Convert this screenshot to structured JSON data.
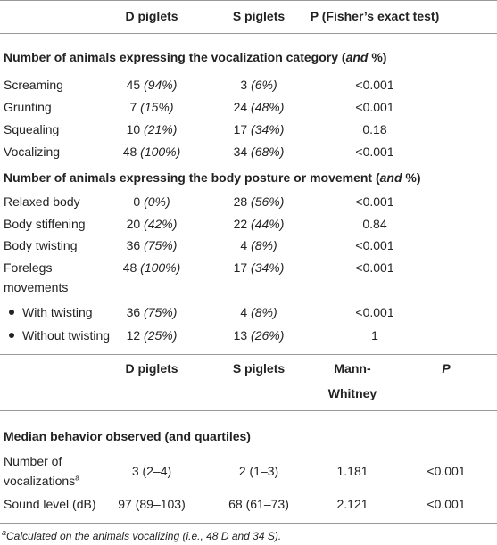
{
  "table1": {
    "header": [
      "D piglets",
      "S piglets",
      "P (Fisher’s exact test)"
    ],
    "sections": [
      {
        "title": {
          "before": "Number of animals expressing the vocalization category (",
          "italic": "and",
          "after": " %)"
        },
        "rows": [
          {
            "label": "Screaming",
            "d": [
              "45",
              "(94%)"
            ],
            "s": [
              "3",
              "(6%)"
            ],
            "p": "<0.001"
          },
          {
            "label": "Grunting",
            "d": [
              "7",
              "(15%)"
            ],
            "s": [
              "24",
              "(48%)"
            ],
            "p": "<0.001"
          },
          {
            "label": "Squealing",
            "d": [
              "10",
              "(21%)"
            ],
            "s": [
              "17",
              "(34%)"
            ],
            "p": "0.18"
          },
          {
            "label": "Vocalizing",
            "d": [
              "48",
              "(100%)"
            ],
            "s": [
              "34",
              "(68%)"
            ],
            "p": "<0.001"
          }
        ]
      },
      {
        "title": {
          "before": "Number of animals expressing the body posture or movement (",
          "italic": "and",
          "after": " %)"
        },
        "rows": [
          {
            "label": "Relaxed body",
            "d": [
              "0",
              "(0%)"
            ],
            "s": [
              "28",
              "(56%)"
            ],
            "p": "<0.001"
          },
          {
            "label": "Body stiffening",
            "d": [
              "20",
              "(42%)"
            ],
            "s": [
              "22",
              "(44%)"
            ],
            "p": "0.84"
          },
          {
            "label": "Body twisting",
            "d": [
              "36",
              "(75%)"
            ],
            "s": [
              "4",
              "(8%)"
            ],
            "p": "<0.001"
          },
          {
            "label": "Forelegs movements",
            "d": [
              "48",
              "(100%)"
            ],
            "s": [
              "17",
              "(34%)"
            ],
            "p": "<0.001",
            "subrows": [
              {
                "label": "With twisting",
                "d": [
                  "36",
                  "(75%)"
                ],
                "s": [
                  "4",
                  "(8%)"
                ],
                "p": "<0.001"
              },
              {
                "label": "Without twisting",
                "d": [
                  "12",
                  "(25%)"
                ],
                "s": [
                  "13",
                  "(26%)"
                ],
                "p": "1"
              }
            ]
          }
        ]
      }
    ]
  },
  "table2": {
    "header": [
      "D piglets",
      "S piglets",
      "Mann-Whitney",
      "P"
    ],
    "section": "Median behavior observed (and quartiles)",
    "rows": [
      {
        "label": "Number of vocalizations",
        "sup": "a",
        "d": "3 (2–4)",
        "s": "2 (1–3)",
        "u": "1.181",
        "p": "<0.001"
      },
      {
        "label": "Sound level (dB)",
        "d": "97 (89–103)",
        "s": "68 (61–73)",
        "u": "2.121",
        "p": "<0.001"
      }
    ]
  },
  "footnote": {
    "sup": "a",
    "text": "Calculated on the animals vocalizing (i.e., 48 D and 34 S)."
  }
}
